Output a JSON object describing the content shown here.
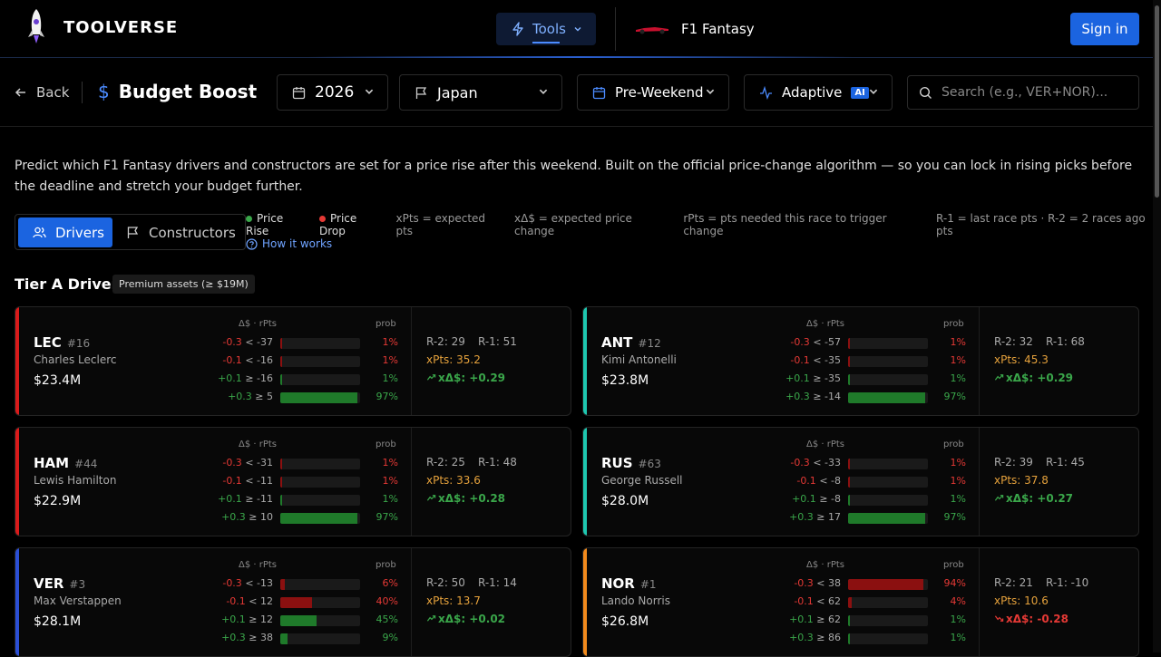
{
  "header": {
    "brand": "TOOLVERSE",
    "tools_label": "Tools",
    "f1_label": "F1 Fantasy",
    "signin_label": "Sign in"
  },
  "toolbar": {
    "back_label": "Back",
    "title": "Budget Boost",
    "year": "2026",
    "race": "Japan",
    "session": "Pre-Weekend",
    "mode": "Adaptive",
    "mode_badge": "AI",
    "search_placeholder": "Search (e.g., VER+NOR)..."
  },
  "description": "Predict which F1 Fantasy drivers and constructors are set for a price rise after this weekend. Built on the official price-change algorithm — so you can lock in rising picks before the deadline and stretch your budget further.",
  "tabs": {
    "drivers": "Drivers",
    "constructors": "Constructors"
  },
  "legend": {
    "rise": "Price Rise",
    "drop": "Price Drop",
    "xpts": "xPts = expected pts",
    "xdelta": "xΔ$ = expected price change",
    "rpts": "rPts = pts needed this race to trigger change",
    "r1r2": "R-1 = last race pts · R-2 = 2 races ago pts",
    "rise_color": "#3aa64a",
    "drop_color": "#e53935"
  },
  "how_it_works": "How it works",
  "tier": {
    "title": "Tier A Drivers",
    "badge": "Premium assets (≥ $19M)"
  },
  "col_headers": {
    "delta": "Δ$ · rPts",
    "prob": "prob"
  },
  "cards": [
    {
      "abbr": "LEC",
      "num": "#16",
      "name": "Charles Leclerc",
      "price": "$23.4M",
      "accent": "#d91a1a",
      "rows": [
        {
          "d": "-0.3",
          "t": "< -37",
          "p": 1,
          "pct": "1%",
          "kind": "drop"
        },
        {
          "d": "-0.1",
          "t": "< -16",
          "p": 1,
          "pct": "1%",
          "kind": "drop"
        },
        {
          "d": "+0.1",
          "t": "≥ -16",
          "p": 1,
          "pct": "1%",
          "kind": "rise"
        },
        {
          "d": "+0.3",
          "t": "≥ 5",
          "p": 97,
          "pct": "97%",
          "kind": "rise"
        }
      ],
      "r2": "R-2: 29",
      "r1": "R-1: 51",
      "xpts": "xPts: 35.2",
      "xd": "xΔ$: +0.29",
      "xd_kind": "rise"
    },
    {
      "abbr": "ANT",
      "num": "#12",
      "name": "Kimi Antonelli",
      "price": "$23.8M",
      "accent": "#1ec7b0",
      "rows": [
        {
          "d": "-0.3",
          "t": "< -57",
          "p": 1,
          "pct": "1%",
          "kind": "drop"
        },
        {
          "d": "-0.1",
          "t": "< -35",
          "p": 1,
          "pct": "1%",
          "kind": "drop"
        },
        {
          "d": "+0.1",
          "t": "≥ -35",
          "p": 1,
          "pct": "1%",
          "kind": "rise"
        },
        {
          "d": "+0.3",
          "t": "≥ -14",
          "p": 97,
          "pct": "97%",
          "kind": "rise"
        }
      ],
      "r2": "R-2: 32",
      "r1": "R-1: 68",
      "xpts": "xPts: 45.3",
      "xd": "xΔ$: +0.29",
      "xd_kind": "rise"
    },
    {
      "abbr": "HAM",
      "num": "#44",
      "name": "Lewis Hamilton",
      "price": "$22.9M",
      "accent": "#d91a1a",
      "rows": [
        {
          "d": "-0.3",
          "t": "< -31",
          "p": 1,
          "pct": "1%",
          "kind": "drop"
        },
        {
          "d": "-0.1",
          "t": "< -11",
          "p": 1,
          "pct": "1%",
          "kind": "drop"
        },
        {
          "d": "+0.1",
          "t": "≥ -11",
          "p": 1,
          "pct": "1%",
          "kind": "rise"
        },
        {
          "d": "+0.3",
          "t": "≥ 10",
          "p": 97,
          "pct": "97%",
          "kind": "rise"
        }
      ],
      "r2": "R-2: 25",
      "r1": "R-1: 48",
      "xpts": "xPts: 33.6",
      "xd": "xΔ$: +0.28",
      "xd_kind": "rise"
    },
    {
      "abbr": "RUS",
      "num": "#63",
      "name": "George Russell",
      "price": "$28.0M",
      "accent": "#1ec7b0",
      "rows": [
        {
          "d": "-0.3",
          "t": "< -33",
          "p": 1,
          "pct": "1%",
          "kind": "drop"
        },
        {
          "d": "-0.1",
          "t": "< -8",
          "p": 1,
          "pct": "1%",
          "kind": "drop"
        },
        {
          "d": "+0.1",
          "t": "≥ -8",
          "p": 1,
          "pct": "1%",
          "kind": "rise"
        },
        {
          "d": "+0.3",
          "t": "≥ 17",
          "p": 97,
          "pct": "97%",
          "kind": "rise"
        }
      ],
      "r2": "R-2: 39",
      "r1": "R-1: 45",
      "xpts": "xPts: 37.8",
      "xd": "xΔ$: +0.27",
      "xd_kind": "rise"
    },
    {
      "abbr": "VER",
      "num": "#3",
      "name": "Max Verstappen",
      "price": "$28.1M",
      "accent": "#2b4fd6",
      "rows": [
        {
          "d": "-0.3",
          "t": "< -13",
          "p": 6,
          "pct": "6%",
          "kind": "drop"
        },
        {
          "d": "-0.1",
          "t": "< 12",
          "p": 40,
          "pct": "40%",
          "kind": "drop"
        },
        {
          "d": "+0.1",
          "t": "≥ 12",
          "p": 45,
          "pct": "45%",
          "kind": "rise"
        },
        {
          "d": "+0.3",
          "t": "≥ 38",
          "p": 9,
          "pct": "9%",
          "kind": "rise"
        }
      ],
      "r2": "R-2: 50",
      "r1": "R-1: 14",
      "xpts": "xPts: 13.7",
      "xd": "xΔ$: +0.02",
      "xd_kind": "rise"
    },
    {
      "abbr": "NOR",
      "num": "#1",
      "name": "Lando Norris",
      "price": "$26.8M",
      "accent": "#f28a1c",
      "rows": [
        {
          "d": "-0.3",
          "t": "< 38",
          "p": 94,
          "pct": "94%",
          "kind": "drop"
        },
        {
          "d": "-0.1",
          "t": "< 62",
          "p": 4,
          "pct": "4%",
          "kind": "drop"
        },
        {
          "d": "+0.1",
          "t": "≥ 62",
          "p": 1,
          "pct": "1%",
          "kind": "rise"
        },
        {
          "d": "+0.3",
          "t": "≥ 86",
          "p": 1,
          "pct": "1%",
          "kind": "rise"
        }
      ],
      "r2": "R-2: 21",
      "r1": "R-1: -10",
      "xpts": "xPts: 10.6",
      "xd": "xΔ$: -0.28",
      "xd_kind": "drop"
    }
  ]
}
